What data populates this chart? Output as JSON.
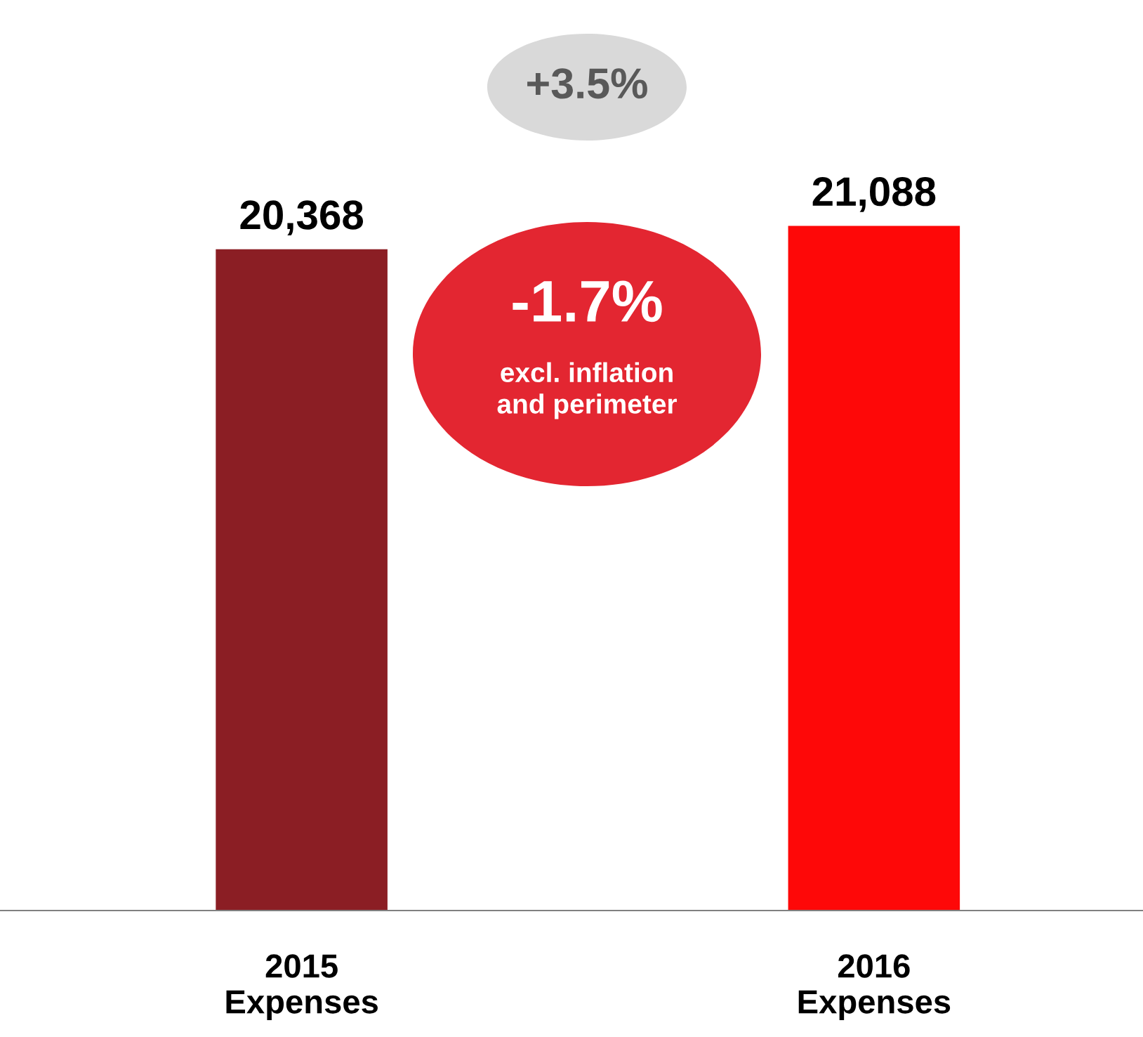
{
  "chart_data": {
    "type": "bar",
    "categories": [
      "2015\nExpenses",
      "2016\nExpenses"
    ],
    "values": [
      20368,
      21088
    ],
    "colors": [
      "#8b1e24",
      "#fe0808"
    ],
    "value_labels": [
      "20,368",
      "21,088"
    ],
    "tick_labels": "x",
    "grid": false,
    "legend": false,
    "annotations": [
      "+3.5%",
      "-1.7%",
      "excl. inflation\nand perimeter"
    ]
  }
}
